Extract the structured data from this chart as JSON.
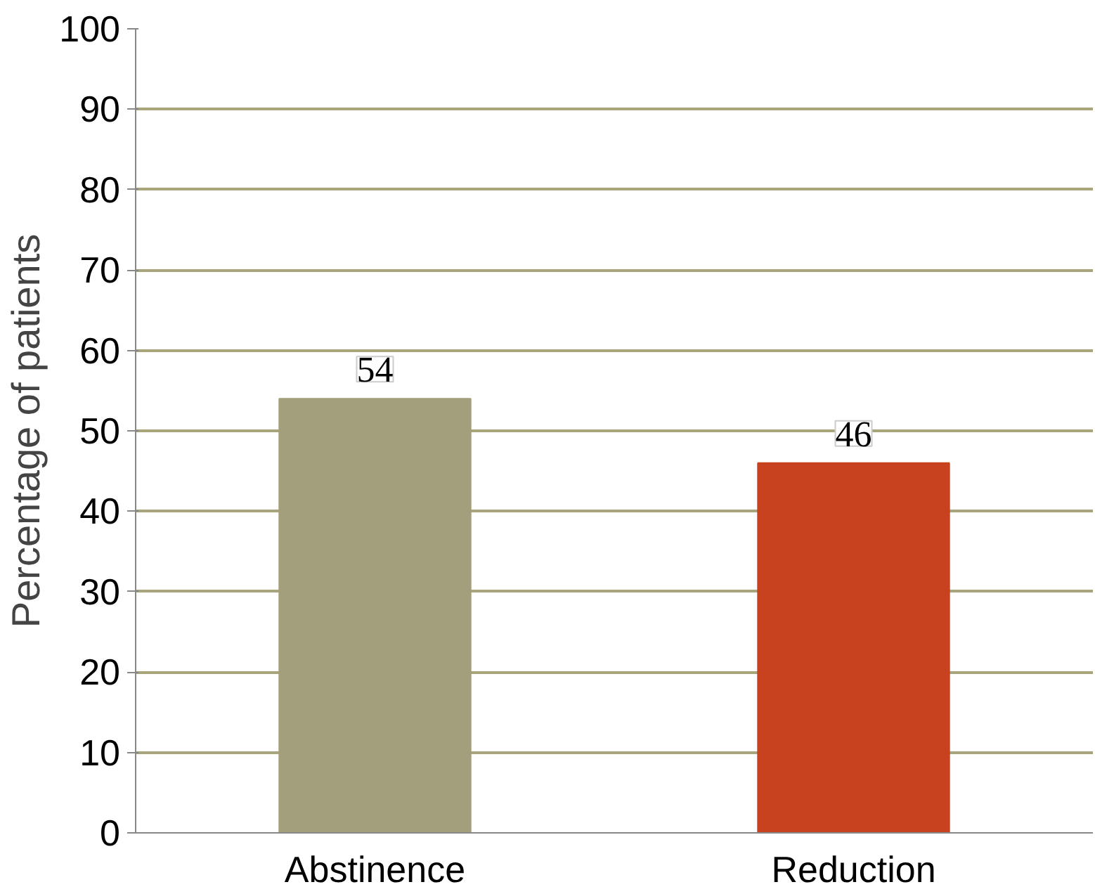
{
  "chart_data": {
    "type": "bar",
    "ylabel": "Percentage of patients",
    "categories": [
      "Abstinence",
      "Reduction"
    ],
    "values": [
      54,
      46
    ],
    "colors": [
      "#a39e7b",
      "#c8421f"
    ],
    "ylim": [
      0,
      100
    ],
    "yticks": [
      0,
      10,
      20,
      30,
      40,
      50,
      60,
      70,
      80,
      90,
      100
    ],
    "grid": "y",
    "data_labels": true
  }
}
